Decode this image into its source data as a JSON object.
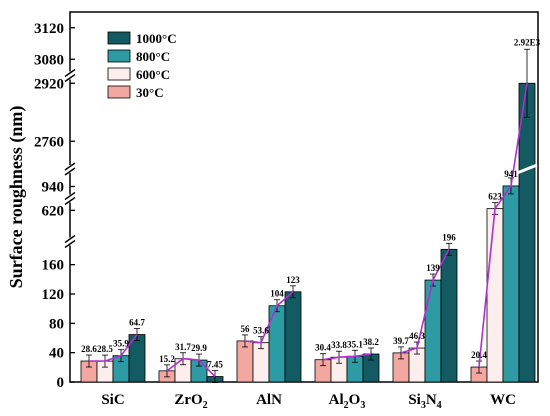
{
  "chart_data": {
    "type": "bar",
    "ylabel": "Surface roughness (nm)",
    "categories": [
      "SiC",
      "ZrO2",
      "AlN",
      "Al2O3",
      "Si3N4",
      "WC"
    ],
    "category_display": [
      [
        {
          "t": "SiC"
        }
      ],
      [
        {
          "t": "ZrO"
        },
        {
          "t": "2",
          "sub": true
        }
      ],
      [
        {
          "t": "AlN"
        }
      ],
      [
        {
          "t": "Al"
        },
        {
          "t": "2",
          "sub": true
        },
        {
          "t": "O"
        },
        {
          "t": "3",
          "sub": true
        }
      ],
      [
        {
          "t": "Si"
        },
        {
          "t": "3",
          "sub": true
        },
        {
          "t": "N"
        },
        {
          "t": "4",
          "sub": true
        }
      ],
      [
        {
          "t": "WC"
        }
      ]
    ],
    "series": [
      {
        "name": "30°C",
        "color": "#f2a8a0",
        "values": [
          28.6,
          15.2,
          56,
          30.4,
          39.7,
          20.4
        ],
        "labels": [
          "28.6",
          "15.2",
          "56",
          "30.4",
          "39.7",
          "20.4"
        ]
      },
      {
        "name": "600°C",
        "color": "#fbeeed",
        "values": [
          28.5,
          31.7,
          53.6,
          33.8,
          46.3,
          623
        ],
        "labels": [
          "28.5",
          "31.7",
          "53.6",
          "33.8",
          "46.3",
          "623"
        ]
      },
      {
        "name": "800°C",
        "color": "#2e9aa3",
        "values": [
          35.9,
          29.9,
          104,
          35.1,
          139,
          941
        ],
        "labels": [
          "35.9",
          "29.9",
          "104",
          "35.1",
          "139",
          "941"
        ]
      },
      {
        "name": "1000°C",
        "color": "#135a62",
        "values": [
          64.7,
          7.45,
          123,
          38.2,
          196,
          2920
        ],
        "labels": [
          "64.7",
          "7.45",
          "123",
          "38.2",
          "196",
          "2.92E3"
        ]
      }
    ],
    "y_segments": [
      {
        "range": [
          0,
          180
        ],
        "ticks": [
          "0",
          "40",
          "80",
          "120",
          "160"
        ]
      },
      {
        "range": [
          580,
          640
        ],
        "ticks": [
          "620"
        ]
      },
      {
        "range": [
          920,
          960
        ],
        "ticks": [
          "940"
        ]
      },
      {
        "range": [
          2700,
          2940
        ],
        "ticks": [
          "2760",
          "2920"
        ]
      },
      {
        "range": [
          3060,
          3140
        ],
        "ticks": [
          "3080",
          "3120"
        ]
      }
    ],
    "trend_line_color": "#b22ed0",
    "legend_position": "top-left"
  }
}
